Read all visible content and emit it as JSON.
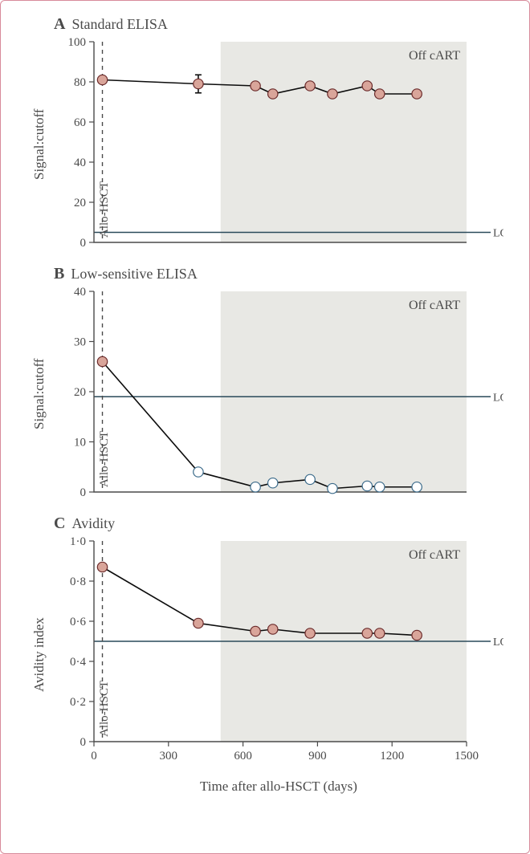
{
  "frame": {
    "border_color": "#d88a9a",
    "background": "#ffffff"
  },
  "x_axis": {
    "label": "Time after allo-HSCT (days)",
    "min": 0,
    "max": 1500,
    "tick_step": 300,
    "ticks": [
      0,
      300,
      600,
      900,
      1200,
      1500
    ],
    "label_fontsize": 17,
    "tick_fontsize": 15
  },
  "shared": {
    "shade_start_x": 510,
    "vline_x": 34,
    "vline_label": "Allo-HSCT",
    "off_cart_label": "Off cART",
    "lod_label": "LOD",
    "shade_color": "#e8e8e4",
    "line_color": "#0c0c0c",
    "marker_fill_color": "#d9a59a",
    "marker_stroke_fill": "#6b2b2b",
    "marker_open_stroke": "#3a6a8a",
    "lod_color": "#2a4a5a",
    "text_color": "#4a4a4a",
    "annot_fontsize": 16,
    "marker_radius": 6.2
  },
  "panels": {
    "A": {
      "letter": "A",
      "title": "Standard ELISA",
      "ylabel": "Signal:cutoff",
      "ymin": 0,
      "ymax": 100,
      "ytick_step": 20,
      "yticks": [
        0,
        20,
        40,
        60,
        80,
        100
      ],
      "lod": 5,
      "series": [
        {
          "x": 34,
          "y": 81,
          "err": 1.2,
          "fill": true
        },
        {
          "x": 420,
          "y": 79,
          "err": 4.5,
          "fill": true
        },
        {
          "x": 650,
          "y": 78,
          "err": 0,
          "fill": true
        },
        {
          "x": 720,
          "y": 74,
          "err": 0,
          "fill": true
        },
        {
          "x": 870,
          "y": 78,
          "err": 0,
          "fill": true
        },
        {
          "x": 960,
          "y": 74,
          "err": 0,
          "fill": true
        },
        {
          "x": 1100,
          "y": 78,
          "err": 0,
          "fill": true
        },
        {
          "x": 1150,
          "y": 74,
          "err": 0,
          "fill": true
        },
        {
          "x": 1300,
          "y": 74,
          "err": 0,
          "fill": true
        }
      ]
    },
    "B": {
      "letter": "B",
      "title": "Low-sensitive ELISA",
      "ylabel": "Signal:cutoff",
      "ymin": 0,
      "ymax": 40,
      "ytick_step": 10,
      "yticks": [
        0,
        10,
        20,
        30,
        40
      ],
      "lod": 19,
      "series": [
        {
          "x": 34,
          "y": 26,
          "fill": true
        },
        {
          "x": 420,
          "y": 4,
          "fill": false
        },
        {
          "x": 650,
          "y": 1,
          "fill": false
        },
        {
          "x": 720,
          "y": 1.8,
          "fill": false
        },
        {
          "x": 870,
          "y": 2.5,
          "fill": false
        },
        {
          "x": 960,
          "y": 0.7,
          "fill": false
        },
        {
          "x": 1100,
          "y": 1.2,
          "fill": false
        },
        {
          "x": 1150,
          "y": 1,
          "fill": false
        },
        {
          "x": 1300,
          "y": 1,
          "fill": false
        }
      ]
    },
    "C": {
      "letter": "C",
      "title": "Avidity",
      "ylabel": "Avidity index",
      "ymin": 0,
      "ymax": 1.0,
      "ytick_step": 0.2,
      "yticks": [
        0,
        0.2,
        0.4,
        0.6,
        0.8,
        1.0
      ],
      "yticks_labels": [
        "0",
        "0·2",
        "0·4",
        "0·6",
        "0·8",
        "1·0"
      ],
      "lod": 0.5,
      "series": [
        {
          "x": 34,
          "y": 0.87,
          "fill": true
        },
        {
          "x": 420,
          "y": 0.59,
          "fill": true
        },
        {
          "x": 650,
          "y": 0.55,
          "fill": true
        },
        {
          "x": 720,
          "y": 0.56,
          "fill": true
        },
        {
          "x": 870,
          "y": 0.54,
          "fill": true
        },
        {
          "x": 1100,
          "y": 0.54,
          "fill": true
        },
        {
          "x": 1150,
          "y": 0.54,
          "fill": true
        },
        {
          "x": 1300,
          "y": 0.53,
          "fill": true
        }
      ]
    }
  }
}
